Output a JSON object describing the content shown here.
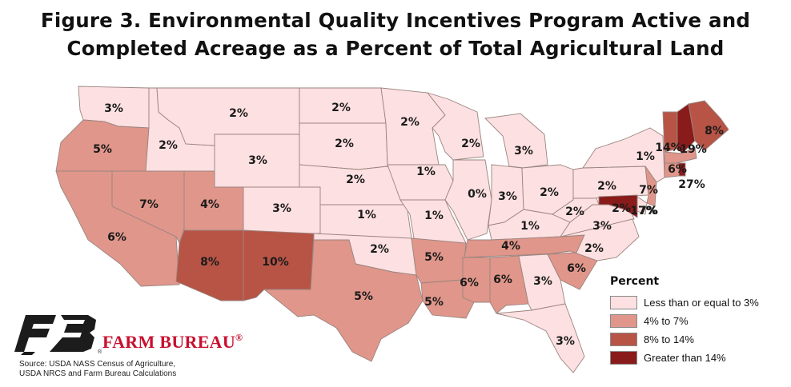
{
  "title": {
    "line1": "Figure 3. Environmental Quality Incentives Program Active and",
    "line2": "Completed Acreage as a Percent of Total Agricultural Land"
  },
  "colors": {
    "low": "#fde0e1",
    "mid": "#e0968a",
    "high": "#b75446",
    "top": "#8a1b1b"
  },
  "legend": {
    "title": "Percent",
    "items": [
      {
        "label": "Less than or equal to 3%",
        "class": "low"
      },
      {
        "label": "4% to 7%",
        "class": "mid"
      },
      {
        "label": "8% to 14%",
        "class": "high"
      },
      {
        "label": "Greater than 14%",
        "class": "top"
      }
    ]
  },
  "brand": {
    "name": "FARM BUREAU",
    "mark": "®"
  },
  "source": {
    "line1": "Source: USDA NASS Census of Agriculture,",
    "line2": "USDA NRCS and Farm Bureau Calculations"
  },
  "states": [
    {
      "id": "WA",
      "label": "3%",
      "class": "low"
    },
    {
      "id": "OR",
      "label": "5%",
      "class": "mid"
    },
    {
      "id": "CA",
      "label": "6%",
      "class": "mid"
    },
    {
      "id": "ID",
      "label": "2%",
      "class": "low"
    },
    {
      "id": "NV",
      "label": "7%",
      "class": "mid"
    },
    {
      "id": "MT",
      "label": "2%",
      "class": "low"
    },
    {
      "id": "WY",
      "label": "3%",
      "class": "low"
    },
    {
      "id": "UT",
      "label": "4%",
      "class": "mid"
    },
    {
      "id": "CO",
      "label": "3%",
      "class": "low"
    },
    {
      "id": "AZ",
      "label": "8%",
      "class": "high"
    },
    {
      "id": "NM",
      "label": "10%",
      "class": "high"
    },
    {
      "id": "ND",
      "label": "2%",
      "class": "low"
    },
    {
      "id": "SD",
      "label": "2%",
      "class": "low"
    },
    {
      "id": "NE",
      "label": "2%",
      "class": "low"
    },
    {
      "id": "KS",
      "label": "1%",
      "class": "low"
    },
    {
      "id": "OK",
      "label": "2%",
      "class": "low"
    },
    {
      "id": "TX",
      "label": "5%",
      "class": "mid"
    },
    {
      "id": "MN",
      "label": "2%",
      "class": "low"
    },
    {
      "id": "IA",
      "label": "1%",
      "class": "low"
    },
    {
      "id": "MO",
      "label": "1%",
      "class": "low"
    },
    {
      "id": "AR",
      "label": "5%",
      "class": "mid"
    },
    {
      "id": "LA",
      "label": "5%",
      "class": "mid"
    },
    {
      "id": "WI",
      "label": "2%",
      "class": "low"
    },
    {
      "id": "IL",
      "label": "0%",
      "class": "low"
    },
    {
      "id": "MI",
      "label": "3%",
      "class": "low"
    },
    {
      "id": "IN",
      "label": "3%",
      "class": "low"
    },
    {
      "id": "OH",
      "label": "2%",
      "class": "low"
    },
    {
      "id": "KY",
      "label": "1%",
      "class": "low"
    },
    {
      "id": "TN",
      "label": "4%",
      "class": "mid"
    },
    {
      "id": "MS",
      "label": "6%",
      "class": "mid"
    },
    {
      "id": "AL",
      "label": "6%",
      "class": "mid"
    },
    {
      "id": "GA",
      "label": "3%",
      "class": "low"
    },
    {
      "id": "FL",
      "label": "3%",
      "class": "low"
    },
    {
      "id": "SC",
      "label": "6%",
      "class": "mid"
    },
    {
      "id": "NC",
      "label": "2%",
      "class": "low"
    },
    {
      "id": "VA",
      "label": "3%",
      "class": "low"
    },
    {
      "id": "WV",
      "label": "2%",
      "class": "low"
    },
    {
      "id": "PA",
      "label": "2%",
      "class": "low"
    },
    {
      "id": "NY",
      "label": "1%",
      "class": "low"
    },
    {
      "id": "VT",
      "label": "14%",
      "class": "high"
    },
    {
      "id": "NH",
      "label": "19%",
      "class": "top"
    },
    {
      "id": "ME",
      "label": "8%",
      "class": "high"
    },
    {
      "id": "MA",
      "label": "6%",
      "class": "mid"
    },
    {
      "id": "CT",
      "label": "7%",
      "class": "mid"
    },
    {
      "id": "RI",
      "label": "27%",
      "class": "top"
    },
    {
      "id": "NJ",
      "label": "7%",
      "class": "mid"
    },
    {
      "id": "DE",
      "label": "2%",
      "class": "low"
    },
    {
      "id": "MD",
      "label": "17%",
      "class": "top"
    }
  ]
}
